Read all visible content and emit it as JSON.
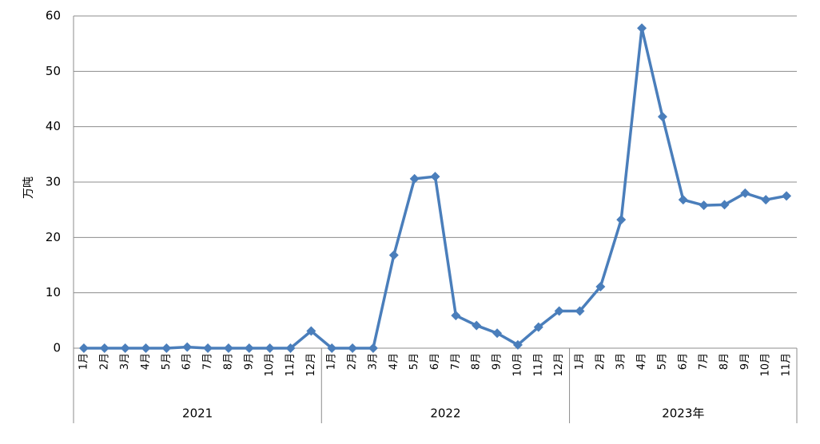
{
  "chart_data": {
    "type": "line",
    "y_label": "万吨",
    "groups": [
      {
        "label": "2021",
        "categories": [
          "1月",
          "2月",
          "3月",
          "4月",
          "5月",
          "6月",
          "7月",
          "8月",
          "9月",
          "10月",
          "11月",
          "12月"
        ]
      },
      {
        "label": "2022",
        "categories": [
          "1月",
          "2月",
          "3月",
          "4月",
          "5月",
          "6月",
          "7月",
          "8月",
          "9月",
          "10月",
          "11月",
          "12月"
        ]
      },
      {
        "label": "2023年",
        "categories": [
          "1月",
          "2月",
          "3月",
          "4月",
          "5月",
          "6月",
          "7月",
          "8月",
          "9月",
          "10月",
          "11月"
        ]
      }
    ],
    "series": [
      {
        "color": "#4a7ebb",
        "values": [
          0,
          0,
          0,
          0,
          0,
          0.2,
          0,
          0,
          0,
          0,
          0,
          3.1,
          0,
          0,
          0,
          16.8,
          30.6,
          31.0,
          5.9,
          4.1,
          2.7,
          0.6,
          3.8,
          6.7,
          6.7,
          11.1,
          23.2,
          57.8,
          41.8,
          26.8,
          25.8,
          25.9,
          28.0,
          26.8,
          27.5
        ]
      }
    ],
    "ylim": [
      0,
      60
    ],
    "yticks": [
      0,
      10,
      20,
      30,
      40,
      50,
      60
    ],
    "grid": true
  }
}
